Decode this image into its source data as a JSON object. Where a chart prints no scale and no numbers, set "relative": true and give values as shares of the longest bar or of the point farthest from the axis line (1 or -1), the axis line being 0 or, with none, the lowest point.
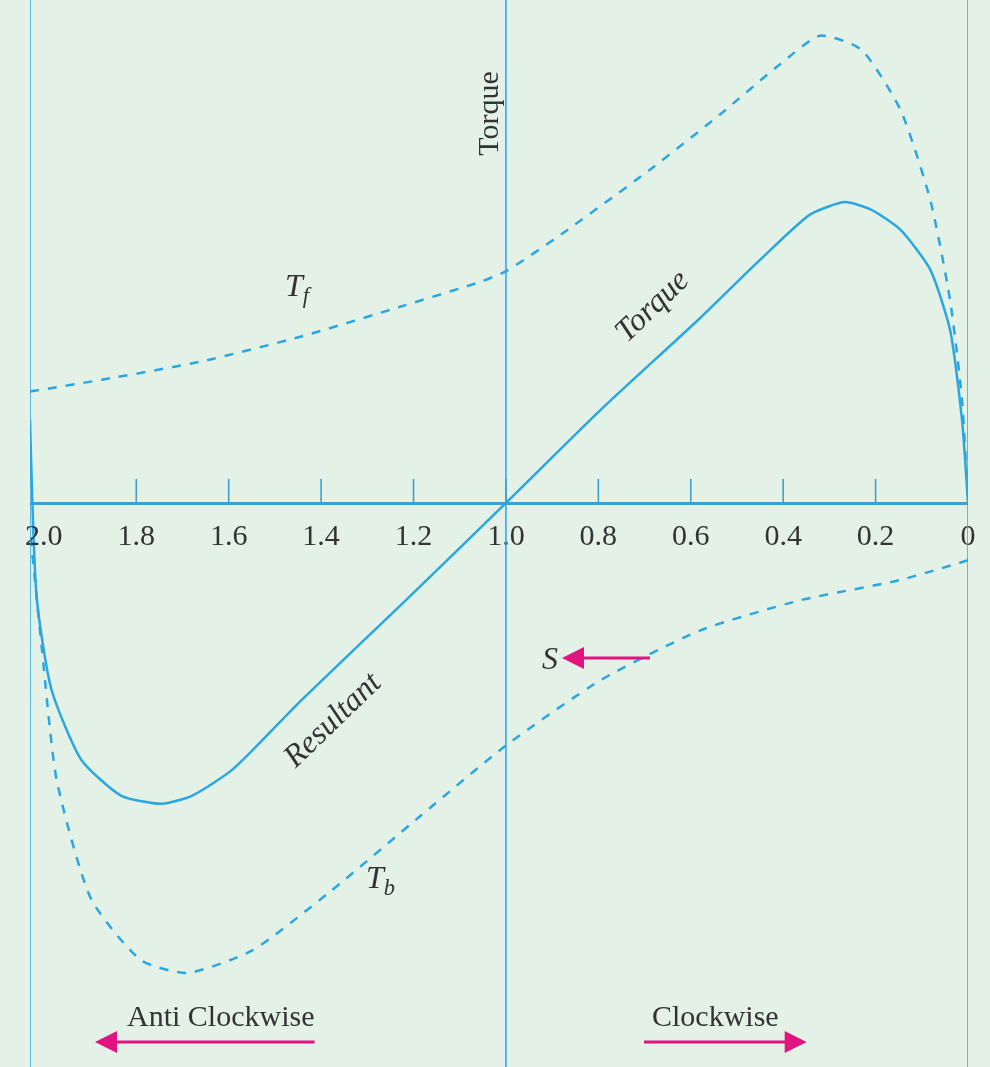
{
  "chart_data": {
    "type": "line",
    "relative": true,
    "ylabel": "Torque",
    "xlim": [
      2.03,
      0
    ],
    "xticks": [
      {
        "value": 2,
        "label": "2.0"
      },
      1.8,
      1.6,
      1.4,
      1.2,
      {
        "value": 1,
        "label": "1.0"
      },
      0.8,
      0.6,
      0.4,
      0.2,
      0
    ],
    "grid": false,
    "tick_labels": "x",
    "marker": "none",
    "series": [
      {
        "color": "#2aa7e0",
        "line_style": "dashed",
        "x": [
          2.03,
          1.875,
          1.659,
          1.443,
          1.227,
          1.054,
          1.0,
          0.881,
          0.687,
          0.536,
          0.406,
          0.32,
          0.233,
          0.147,
          0.082,
          0.039,
          0.013,
          0
        ],
        "values": [
          0.237,
          0.262,
          0.301,
          0.354,
          0.418,
          0.471,
          0.493,
          0.571,
          0.71,
          0.827,
          0.934,
          0.994,
          0.966,
          0.838,
          0.646,
          0.433,
          0.22,
          0
        ]
      },
      {
        "color": "#2aa7e0",
        "line_style": "dashed",
        "x": [
          0,
          0.147,
          0.363,
          0.579,
          0.795,
          1.0,
          1.184,
          1.378,
          1.551,
          1.691,
          1.788,
          1.896,
          1.972,
          2.004,
          2.03
        ],
        "values": [
          -0.122,
          -0.164,
          -0.207,
          -0.271,
          -0.377,
          -0.516,
          -0.665,
          -0.825,
          -0.953,
          -1.0,
          -0.974,
          -0.846,
          -0.591,
          -0.313,
          -0.058
        ]
      },
      {
        "color": "#2aa7e0",
        "line_style": "solid",
        "x": [
          0,
          0.013,
          0.039,
          0.082,
          0.147,
          0.212,
          0.266,
          0.341,
          0.449,
          0.579,
          0.795,
          1.0,
          1.227,
          1.443,
          1.594,
          1.68,
          1.745,
          1.832,
          1.918,
          1.983,
          2.015,
          2.03
        ],
        "values": [
          0,
          0.177,
          0.369,
          0.497,
          0.582,
          0.625,
          0.64,
          0.614,
          0.518,
          0.394,
          0.198,
          0,
          -0.217,
          -0.42,
          -0.569,
          -0.623,
          -0.64,
          -0.623,
          -0.548,
          -0.399,
          -0.207,
          0.177
        ]
      }
    ],
    "ref_lines": [
      {
        "axis": "x",
        "value": 2.03,
        "color": "#2aa7e0"
      },
      {
        "axis": "x",
        "value": 1.0,
        "color": "#2aa7e0"
      },
      {
        "axis": "x",
        "value": 0,
        "color": "#2aa7e0"
      }
    ],
    "annotations": [
      "T$_{f}$",
      "Torque",
      "Resultant",
      "T$_{b}$",
      "S",
      "Anti Clockwise",
      "Clockwise"
    ]
  }
}
